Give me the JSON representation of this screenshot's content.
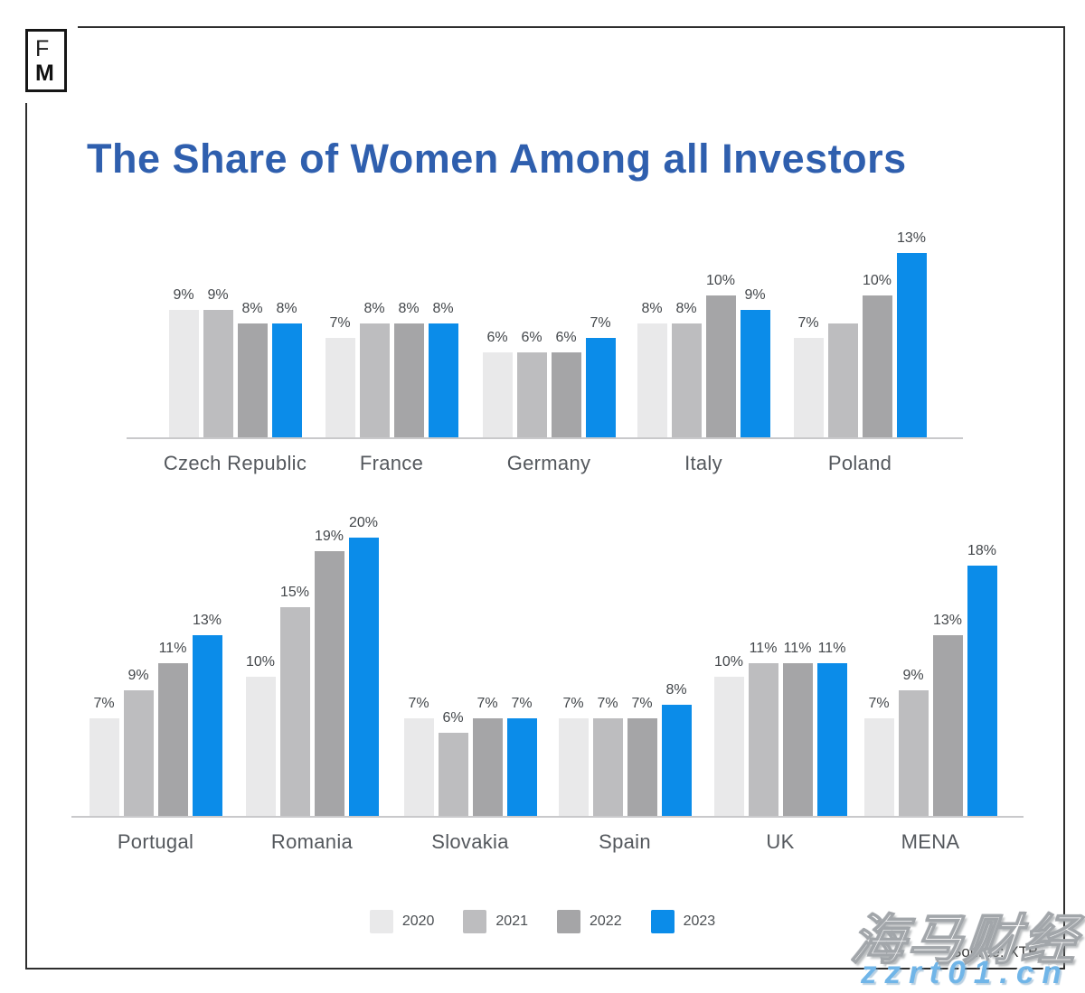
{
  "branding": {
    "logo_top": "F",
    "logo_bottom": "M"
  },
  "title": "The Share of Women Among all Investors",
  "colors": {
    "title_accent": "#2f5fae",
    "y2020": "#e9e9ea",
    "y2021": "#bdbdbf",
    "y2022": "#a5a5a7",
    "y2023": "#0b8ce9"
  },
  "legend": {
    "items": [
      {
        "label": "2020",
        "color": "#e9e9ea"
      },
      {
        "label": "2021",
        "color": "#bdbdbf"
      },
      {
        "label": "2022",
        "color": "#a5a5a7"
      },
      {
        "label": "2023",
        "color": "#0b8ce9"
      }
    ]
  },
  "source": "Source: XTB",
  "watermark": {
    "text_cjk": "海马财经",
    "text_url": "zzrt01.cn"
  },
  "chart_data": [
    {
      "type": "bar",
      "row": "top",
      "categories": [
        "Czech Republic",
        "France",
        "Germany",
        "Italy",
        "Poland"
      ],
      "series": [
        {
          "name": "2020",
          "color": "#e9e9ea",
          "values": [
            9,
            7,
            6,
            8,
            7
          ]
        },
        {
          "name": "2021",
          "color": "#bdbdbf",
          "values": [
            9,
            8,
            6,
            8,
            8
          ]
        },
        {
          "name": "2022",
          "color": "#a5a5a7",
          "values": [
            8,
            8,
            6,
            10,
            10
          ]
        },
        {
          "name": "2023",
          "color": "#0b8ce9",
          "values": [
            8,
            8,
            7,
            9,
            13
          ]
        }
      ],
      "value_suffix": "%",
      "hidden_labels": [
        {
          "category": "Poland",
          "series": "2021"
        }
      ],
      "ylim": [
        0,
        14
      ],
      "grid": false,
      "legend_position": "bottom-shared"
    },
    {
      "type": "bar",
      "row": "bottom",
      "categories": [
        "Portugal",
        "Romania",
        "Slovakia",
        "Spain",
        "UK",
        "MENA"
      ],
      "series": [
        {
          "name": "2020",
          "color": "#e9e9ea",
          "values": [
            7,
            10,
            7,
            7,
            10,
            7
          ]
        },
        {
          "name": "2021",
          "color": "#bdbdbf",
          "values": [
            9,
            15,
            6,
            7,
            11,
            9
          ]
        },
        {
          "name": "2022",
          "color": "#a5a5a7",
          "values": [
            11,
            19,
            7,
            7,
            11,
            13
          ]
        },
        {
          "name": "2023",
          "color": "#0b8ce9",
          "values": [
            13,
            20,
            7,
            8,
            11,
            18
          ]
        }
      ],
      "value_suffix": "%",
      "hidden_labels": [],
      "ylim": [
        0,
        21
      ],
      "grid": false,
      "legend_position": "bottom-shared"
    }
  ]
}
